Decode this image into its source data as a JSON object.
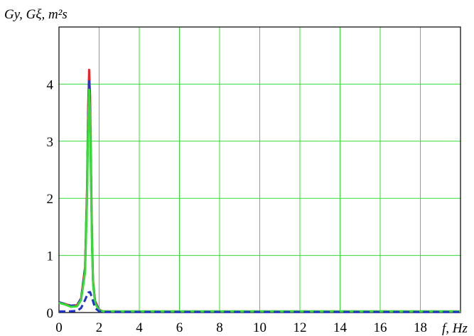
{
  "chart_data": {
    "type": "line",
    "ylabel": "Gy, Gξ, m²s",
    "xlabel": "f, Hz",
    "xlim": [
      0,
      20
    ],
    "ylim": [
      0,
      5
    ],
    "x_ticks": [
      "0",
      "2",
      "4",
      "6",
      "8",
      "10",
      "12",
      "14",
      "16",
      "18"
    ],
    "y_ticks": [
      "0",
      "1",
      "2",
      "3",
      "4"
    ],
    "grid": true,
    "grid_color": "#33dd33",
    "series": [
      {
        "color": "#ee2222",
        "style": "solid",
        "x": [
          0,
          0.3,
          0.6,
          0.9,
          1.1,
          1.3,
          1.4,
          1.45,
          1.5,
          1.55,
          1.6,
          1.65,
          1.7,
          1.8,
          2.0,
          2.2,
          20
        ],
        "y": [
          0.18,
          0.15,
          0.12,
          0.13,
          0.25,
          0.8,
          2.2,
          3.6,
          4.25,
          3.8,
          2.4,
          1.2,
          0.55,
          0.2,
          0.05,
          0.02,
          0.02
        ]
      },
      {
        "color": "#2233cc",
        "style": "dashed",
        "x": [
          0,
          0.3,
          0.6,
          0.9,
          1.1,
          1.3,
          1.4,
          1.45,
          1.5,
          1.55,
          1.6,
          1.65,
          1.7,
          1.8,
          2.0,
          2.2,
          20
        ],
        "y": [
          0.18,
          0.15,
          0.12,
          0.13,
          0.24,
          0.75,
          2.1,
          3.45,
          4.05,
          3.6,
          2.3,
          1.15,
          0.5,
          0.18,
          0.05,
          0.02,
          0.02
        ]
      },
      {
        "color": "#33dd33",
        "style": "solid",
        "x": [
          0,
          0.3,
          0.6,
          0.9,
          1.1,
          1.3,
          1.4,
          1.45,
          1.5,
          1.55,
          1.6,
          1.65,
          1.7,
          1.8,
          2.0,
          2.2,
          20
        ],
        "y": [
          0.17,
          0.14,
          0.1,
          0.11,
          0.22,
          0.7,
          2.0,
          3.3,
          3.9,
          3.45,
          2.2,
          1.1,
          0.5,
          0.16,
          0.04,
          0.02,
          0.02
        ]
      },
      {
        "color": "#2233cc",
        "style": "dashed",
        "x": [
          0,
          0.5,
          0.9,
          1.1,
          1.3,
          1.45,
          1.55,
          1.65,
          1.8,
          2.0,
          2.3,
          20
        ],
        "y": [
          0.02,
          0.02,
          0.03,
          0.08,
          0.22,
          0.35,
          0.36,
          0.25,
          0.08,
          0.02,
          0.01,
          0.01
        ]
      }
    ]
  }
}
